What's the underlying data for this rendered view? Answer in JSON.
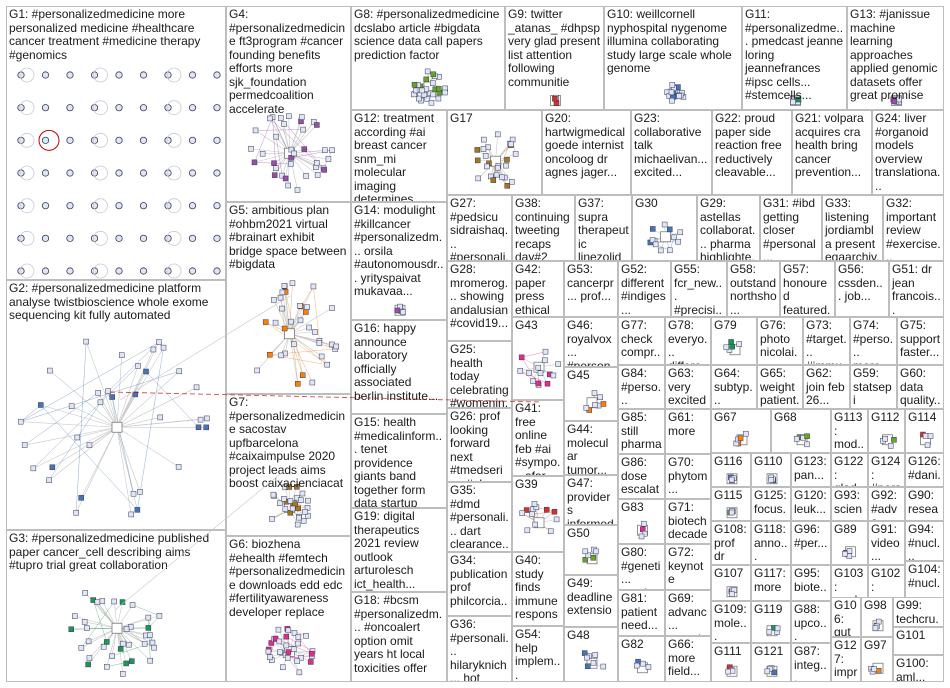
{
  "groups": {
    "G1": "G1: #personalizedmedicine more personalized medicine #healthcare cancer treatment #medicine therapy #genomics",
    "G2": "G2: #personalizedmedicine platform analyse twistbioscience whole exome sequencing kit fully automated",
    "G3": "G3: #personalizedmedicine published paper cancer_cell describing aims #tupro trial great collaboration",
    "G4": "G4: #personalizedmedicine ft3program #cancer founding benefits efforts more sjk_foundation permedcoalition accelerate",
    "G5": "G5: ambitious plan #ohbm2021 virtual #brainart exhibit bridge space between #bigdata",
    "G6": "G6: biozhena #ehealth #femtech #personalizedmedicine downloads edd edc #fertilityawareness developer replace",
    "G7": "G7: #personalizedmedicine sacostav upfbarcelona #caixaimpulse 2020 project leads aims boost caixacienciacat",
    "G8": "G8: #personalizedmedicine dcslabo article #bigdata science data call papers prediction factor",
    "G9": "G9: twitter _atanas_ #dhpsp very glad present list attention following communitie",
    "G10": "G10: weillcornell nyphospital nygenome illumina collaborating study large scale whole genome",
    "G11": "G11: #personalizedme... pmedcast jeanne loring jeannefrances #ipsc cells... #stemcells...",
    "G12": "G12: treatment according #ai breast cancer snm_mi molecular imaging determines effectiveness",
    "G13": "G13: #janissue machine learning approaches applied genomic datasets offer great promise",
    "G14": "G14: modulight #killcancer #personalizedm... orsila #autonomousdr... yrityspaivat mukavaa...",
    "G15": "G15: health #medicalinform... tenet providence giants band together form data startup",
    "G16": "G16: happy announce laboratory officially associated berlin institute...",
    "G17": "G17",
    "G18": "G18: #bcsm #personalizedm... #oncoalert option omit years ht local toxicities offer",
    "G19": "G19: digital therapeutics 2021 review outlook arturolesch ict_health...",
    "G20": "G20: hartwigmedical goede internist oncoloog dr agnes jager...",
    "G21": "G21: volpara acquires cra health bring cancer prevention...",
    "G22": "G22: proud paper side reaction free reductively cleavable...",
    "G23": "G23: collaborative talk michaelivan... excited...",
    "G24": "G24: liver #organoid models overview translationa...",
    "G25": "G25: health today celebrating #womenin... luizagrazzi...",
    "G26": "G26: prof looking forward next #tmedseries #als #mnd...",
    "G27": "G27: #pedsicu sidraishaq... #personali... sedation...",
    "G28": "G28: mromerog... showing andalusian #covid19...",
    "G29": "G29: astellas collaborat... pharma highlighte...",
    "G30": "G30",
    "G31": "G31: #ibd getting closer #personal... #cccongr...",
    "G32": "G32: important review #exercise... patients...",
    "G33": "G33: listening jordiambla present egaarchiv...",
    "G34": "G34: publication prof philcorcia...",
    "G35": "G35: #dmd #personali... dart clearance...",
    "G36": "G36: #personali... hilaryknich... hot topic...",
    "G37": "G37: supra therapeutic linezolid trough concentra...",
    "G38": "G38: continuing tweeting recaps day#2 pic...",
    "G39": "G39",
    "G40": "G40: study finds immune respons...",
    "G41": "G41: free online feb #ai #sympo... afar sci...",
    "G42": "G42: paper press ethical principl...",
    "G43": "G43",
    "G44": "G44: molecular tumor...",
    "G45": "G45",
    "G46": "G46: royalvox... #person...",
    "G47": "G47: providers informed...",
    "G48": "G48",
    "G49": "G49: deadline extensio...",
    "G50": "G50",
    "G51": "G51: dr jean francois...",
    "G52": "G52: different #indiges...",
    "G53": "G53: cancerpr... prof...",
    "G54": "G54: help implem... patient...",
    "G55": "G55: fcr_new... #precisi...",
    "G56": "G56: cssden... job...",
    "G57": "G57: honoured featured...",
    "G58": "G58: outstand northsho...",
    "G59": "G59: statsepi person...",
    "G60": "G60: data quality...",
    "G61": "G61: more",
    "G62": "G62: join feb 26...",
    "G63": "G63: very excited...",
    "G64": "G64: subtyp... non...",
    "G65": "G65: weight patient...",
    "G66": "G66: more field...",
    "G67": "G67",
    "G68": "G68",
    "G69": "G69: advanc... quantit...",
    "G70": "G70: phytom... named...",
    "G71": "G71: biotech decade...",
    "G72": "G72: keynote presen...",
    "G73": "G73: #target... #immu...",
    "G74": "G74: #perso... more...",
    "G75": "G75: support faster...",
    "G76": "G76: photo nicolai...",
    "G77": "G77: check compr...",
    "G78": "G78: everyo... differe...",
    "G79": "G79",
    "G80": "G80: #geneti... nursing...",
    "G81": "G81: patient need...",
    "G82": "G82",
    "G83": "G83",
    "G84": "G84: #perso... aims...",
    "G85": "G85: still pharma thrilled...",
    "G86": "G86: dose escalat...",
    "G87": "G87: integ...",
    "G88": "G88: upco...",
    "G89": "G89",
    "G90": "G90: resea...",
    "G91": "G91: video...",
    "G92": "G92: #adva...",
    "G93": "G93: scien...",
    "G94": "G94: #nucl...",
    "G95": "G95: biote...",
    "G96": "G96: #per...",
    "G97": "G97",
    "G98": "G98",
    "G99": "G99: techcru...",
    "G100": "G100: aml...",
    "G101": "G101",
    "G102": "G102: resea...",
    "G103": "G103: mark...",
    "G104": "G104: #nucl...",
    "G106": "G106: gut chip...",
    "G107": "G107",
    "G108": "G108: prof dr",
    "G109": "G109: mole...",
    "G110": "G110",
    "G111": "G111",
    "G112": "G112",
    "G113": "G113: mod...",
    "G114": "G114",
    "G115": "G115",
    "G116": "G116",
    "G117": "G117: more",
    "G118": "G118: anno...",
    "G119": "G119",
    "G120": "G120: leuk...",
    "G121": "G121",
    "G122": "G122: glad...",
    "G123": "G123: pan...",
    "G124": "G124: #pers...",
    "G125": "G125: focus...",
    "G126": "G126: #dani...",
    "G127": "G127: impr... stud..."
  },
  "colors": {
    "cell_border": "#bdbdbd",
    "edge": "#c8c8c8",
    "edge_dark": "#7a7a7a",
    "node_border": "#3a3a5a",
    "node_fill": "#dfe6f5",
    "accent_red": "#c00000",
    "group_palette": [
      "#d73027",
      "#4575b4",
      "#1a9850",
      "#984ea3",
      "#ff7f00",
      "#a6761d",
      "#e7298a",
      "#66a61e"
    ]
  }
}
